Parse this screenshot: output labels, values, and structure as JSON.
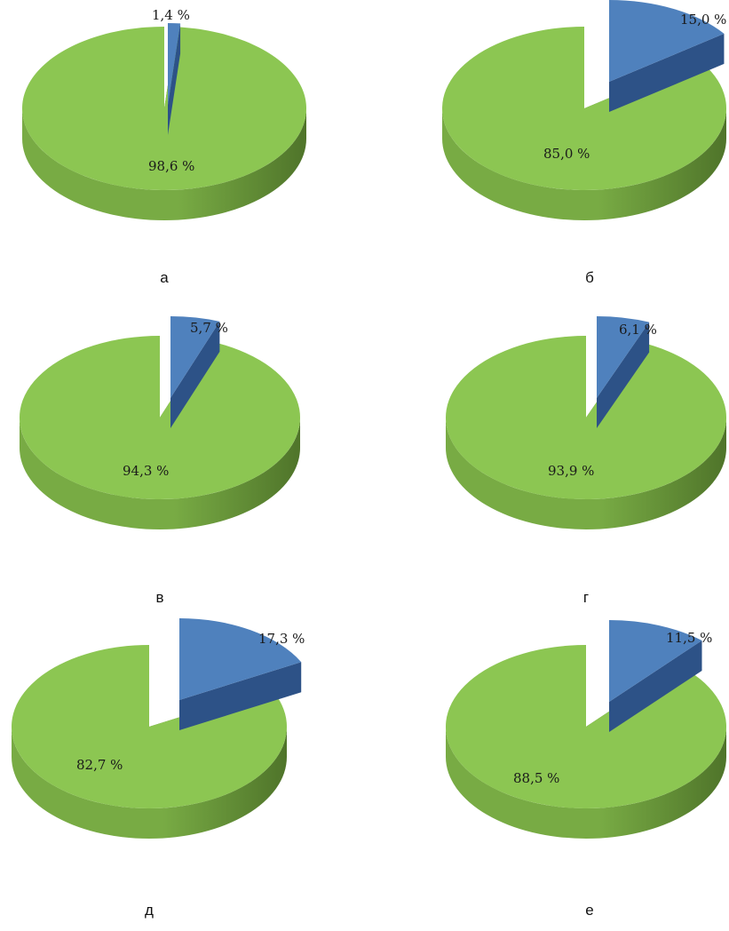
{
  "colors": {
    "green_top": "#8cc652",
    "green_side_light": "#78ab44",
    "green_side_dark": "#4f742a",
    "blue_top": "#4f81bd",
    "blue_side": "#2d5287"
  },
  "chart_data": [
    {
      "type": "pie",
      "caption": "а",
      "slices": [
        {
          "value": 98.6,
          "label": "98,6 %"
        },
        {
          "value": 1.4,
          "label": "1,4 %",
          "exploded": true
        }
      ]
    },
    {
      "type": "pie",
      "caption": "б",
      "slices": [
        {
          "value": 85.0,
          "label": "85,0 %"
        },
        {
          "value": 15.0,
          "label": "15,0 %",
          "exploded": true
        }
      ]
    },
    {
      "type": "pie",
      "caption": "в",
      "slices": [
        {
          "value": 94.3,
          "label": "94,3 %"
        },
        {
          "value": 5.7,
          "label": "5,7 %",
          "exploded": true
        }
      ]
    },
    {
      "type": "pie",
      "caption": "г",
      "slices": [
        {
          "value": 93.9,
          "label": "93,9 %"
        },
        {
          "value": 6.1,
          "label": "6,1 %",
          "exploded": true
        }
      ]
    },
    {
      "type": "pie",
      "caption": "д",
      "slices": [
        {
          "value": 82.7,
          "label": "82,7 %"
        },
        {
          "value": 17.3,
          "label": "17,3 %",
          "exploded": true
        }
      ]
    },
    {
      "type": "pie",
      "caption": "е",
      "slices": [
        {
          "value": 88.5,
          "label": "88,5 %"
        },
        {
          "value": 11.5,
          "label": "11,5 %",
          "exploded": true
        }
      ]
    }
  ]
}
